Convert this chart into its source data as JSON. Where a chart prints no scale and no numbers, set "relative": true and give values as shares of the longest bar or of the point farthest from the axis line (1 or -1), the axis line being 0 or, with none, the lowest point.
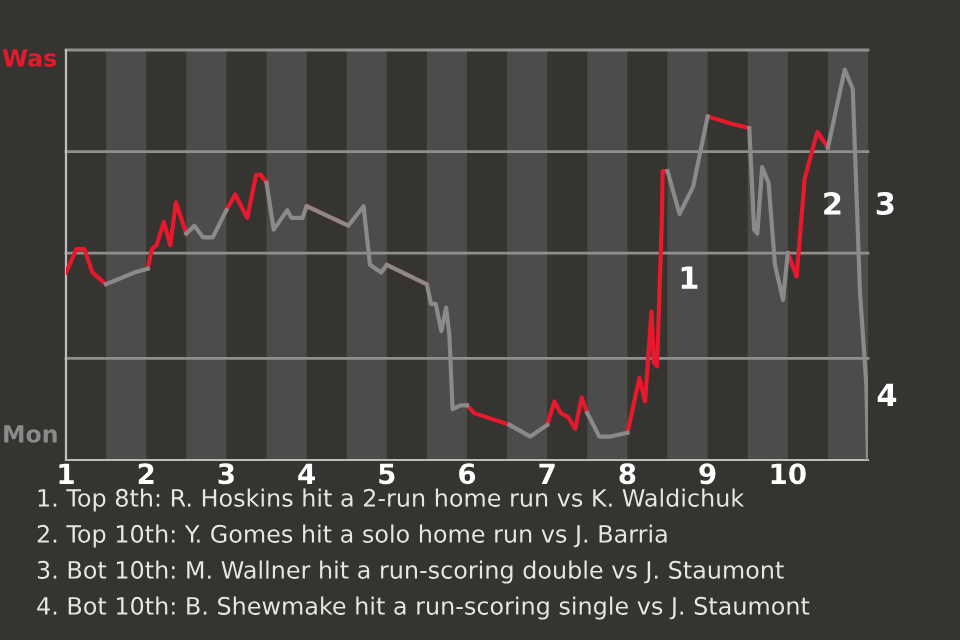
{
  "chart_data": {
    "type": "line",
    "relative": true,
    "x": [
      1.0,
      1.13,
      1.23,
      1.33,
      1.5,
      1.85,
      2.02,
      2.07,
      2.13,
      2.22,
      2.3,
      2.37,
      2.5,
      2.6,
      2.71,
      2.83,
      3.0,
      3.11,
      3.26,
      3.37,
      3.43,
      3.5,
      3.59,
      3.76,
      3.81,
      3.95,
      4.0,
      4.52,
      4.71,
      4.79,
      4.93,
      5.0,
      5.5,
      5.55,
      5.61,
      5.68,
      5.74,
      5.78,
      5.82,
      5.92,
      6.0,
      6.09,
      6.53,
      6.79,
      7.0,
      7.09,
      7.17,
      7.26,
      7.35,
      7.43,
      7.5,
      7.65,
      7.79,
      8.0,
      8.15,
      8.22,
      8.3,
      8.33,
      8.37,
      8.43,
      8.44,
      8.5,
      8.65,
      8.82,
      9.0,
      9.32,
      9.52,
      9.58,
      9.62,
      9.68,
      9.76,
      9.84,
      9.94,
      10.0,
      10.11,
      10.21,
      10.34,
      10.37,
      10.5,
      10.71,
      10.81,
      10.9,
      10.98,
      11.0
    ],
    "xlim": [
      1,
      11
    ],
    "xticks": [
      1,
      2,
      3,
      4,
      5,
      6,
      7,
      8,
      9,
      10
    ],
    "series": [
      {
        "color": "#e8192c",
        "values": [
          0.48,
          0.54,
          0.54,
          0.48,
          0.45,
          null,
          0.49,
          0.54,
          0.55,
          0.61,
          0.55,
          0.66,
          0.58,
          null,
          null,
          null,
          0.64,
          0.68,
          0.62,
          0.73,
          0.73,
          0.71,
          null,
          null,
          null,
          null,
          0.65,
          0.6,
          null,
          null,
          null,
          0.5,
          0.45,
          null,
          null,
          null,
          null,
          null,
          null,
          null,
          0.14,
          0.12,
          0.09,
          null,
          0.09,
          0.15,
          0.12,
          0.11,
          0.08,
          0.16,
          0.12,
          null,
          null,
          0.07,
          0.21,
          0.15,
          0.38,
          0.25,
          0.24,
          0.62,
          0.74,
          0.74,
          null,
          null,
          0.88,
          0.86,
          0.85,
          null,
          null,
          null,
          null,
          null,
          null,
          0.53,
          0.47,
          0.72,
          0.82,
          0.84,
          0.8,
          null,
          null,
          null,
          null,
          null
        ]
      },
      {
        "color": "#8a8a8a",
        "values": [
          null,
          null,
          null,
          null,
          0.45,
          0.48,
          0.49,
          null,
          null,
          null,
          null,
          null,
          0.58,
          0.6,
          0.57,
          0.57,
          0.64,
          null,
          null,
          null,
          null,
          0.71,
          0.59,
          0.64,
          0.62,
          0.62,
          0.65,
          0.6,
          0.65,
          0.5,
          0.48,
          0.5,
          0.45,
          0.4,
          0.4,
          0.33,
          0.39,
          0.32,
          0.13,
          0.14,
          0.14,
          null,
          0.09,
          0.06,
          0.09,
          null,
          null,
          null,
          null,
          null,
          0.12,
          0.06,
          0.06,
          0.07,
          null,
          null,
          null,
          null,
          null,
          null,
          null,
          0.74,
          0.63,
          0.7,
          0.88,
          null,
          0.85,
          0.59,
          0.58,
          0.75,
          0.71,
          0.5,
          0.41,
          0.53,
          null,
          null,
          null,
          null,
          0.8,
          1,
          0.95,
          0.43,
          0.19,
          0
        ]
      }
    ],
    "ref_lines": [
      {
        "axis": "y",
        "value": 0.26,
        "color": "#8f8f8f"
      },
      {
        "axis": "y",
        "value": 0.53,
        "color": "#8f8f8f"
      },
      {
        "axis": "y",
        "value": 0.79,
        "color": "#8f8f8f"
      },
      {
        "axis": "y",
        "value": 1.05,
        "color": "#8f8f8f"
      }
    ],
    "bands": [
      {
        "axis": "x",
        "from": 1.5,
        "to": 2,
        "color": "#4d4c4a"
      },
      {
        "axis": "x",
        "from": 2.5,
        "to": 3,
        "color": "#4d4c4a"
      },
      {
        "axis": "x",
        "from": 3.5,
        "to": 4,
        "color": "#4d4c4a"
      },
      {
        "axis": "x",
        "from": 4.5,
        "to": 5,
        "color": "#4d4c4a"
      },
      {
        "axis": "x",
        "from": 5.5,
        "to": 6,
        "color": "#4d4c4a"
      },
      {
        "axis": "x",
        "from": 6.5,
        "to": 7,
        "color": "#4d4c4a"
      },
      {
        "axis": "x",
        "from": 7.5,
        "to": 8,
        "color": "#4d4c4a"
      },
      {
        "axis": "x",
        "from": 8.5,
        "to": 9,
        "color": "#4d4c4a"
      },
      {
        "axis": "x",
        "from": 9.5,
        "to": 10,
        "color": "#4d4c4a"
      },
      {
        "axis": "x",
        "from": 10.5,
        "to": 11,
        "color": "#4d4c4a"
      }
    ],
    "annotations": [
      "Was",
      "Mon",
      {
        "text": "1",
        "x": 8.53,
        "y": 0.46
      },
      {
        "text": "2",
        "x": 10.32,
        "y": 0.65
      },
      {
        "text": "3",
        "x": 10.98,
        "y": 0.65
      },
      {
        "text": "4",
        "x": 11,
        "y": 0.16
      },
      "1. Top 8th: R. Hoskins hit a 2-run home run vs K. Waldichuk",
      "2. Top 10th: Y. Gomes hit a solo home run vs J. Barria",
      "3. Bot 10th: M. Wallner hit a run-scoring double vs J. Staumont",
      "4. Bot 10th: B. Shewmake hit a run-scoring single vs J. Staumont"
    ]
  }
}
